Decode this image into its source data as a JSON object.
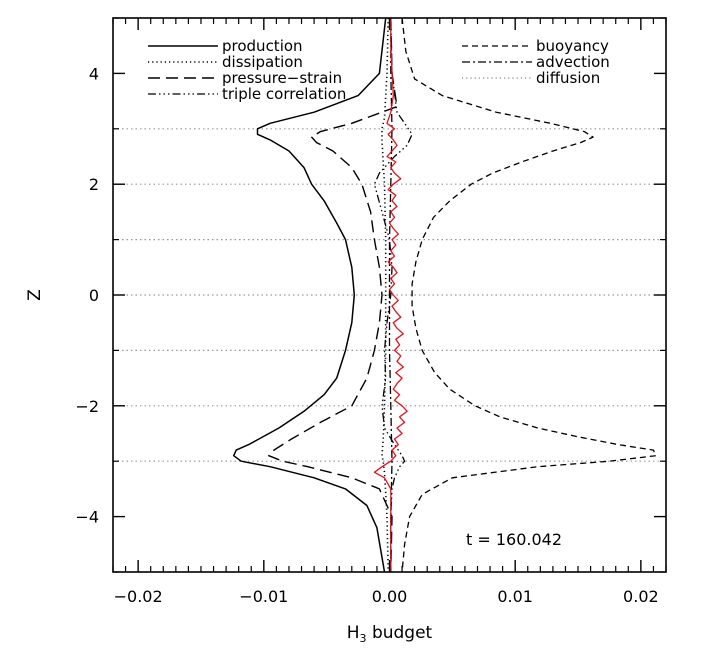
{
  "chart_data": {
    "type": "line",
    "xlabel": "H",
    "xlabel_sub": "3",
    "xlabel_rest": " budget",
    "ylabel": "Z",
    "xlim": [
      -0.022,
      0.022
    ],
    "ylim": [
      -5,
      5
    ],
    "x_ticks": [
      -0.02,
      -0.01,
      0.0,
      0.01,
      0.02
    ],
    "x_tick_labels": [
      "−0.02",
      "−0.01",
      "0.00",
      "0.01",
      "0.02"
    ],
    "y_ticks": [
      -4,
      -2,
      0,
      2,
      4
    ],
    "y_tick_labels": [
      "−4",
      "−2",
      "0",
      "2",
      "4"
    ],
    "grid_z": [
      -3,
      -2,
      -1,
      0,
      1,
      2,
      3
    ],
    "annotation": "t = 160.042",
    "legend_left": [
      "production",
      "dissipation",
      "pressure−strain",
      "triple correlation"
    ],
    "legend_right": [
      "buoyancy",
      "advection",
      "diffusion"
    ],
    "series": [
      {
        "name": "production",
        "style": "solid",
        "color": "#000000",
        "z": [
          5,
          4,
          3.6,
          3.3,
          3.1,
          3.0,
          2.9,
          2.8,
          2.6,
          2.3,
          2.0,
          1.7,
          1.3,
          1.0,
          0.5,
          0,
          -0.5,
          -1.0,
          -1.5,
          -1.8,
          -2.1,
          -2.4,
          -2.7,
          -2.8,
          -2.9,
          -3.0,
          -3.1,
          -3.3,
          -3.5,
          -3.8,
          -4.2,
          -5
        ],
        "x": [
          -0.0003,
          -0.0008,
          -0.0025,
          -0.006,
          -0.0095,
          -0.0105,
          -0.0105,
          -0.0095,
          -0.008,
          -0.0068,
          -0.0062,
          -0.0052,
          -0.0042,
          -0.0035,
          -0.003,
          -0.0028,
          -0.003,
          -0.0035,
          -0.0042,
          -0.0052,
          -0.0068,
          -0.0088,
          -0.0112,
          -0.0122,
          -0.0124,
          -0.0118,
          -0.0095,
          -0.006,
          -0.0035,
          -0.0018,
          -0.001,
          -0.0004
        ]
      },
      {
        "name": "dissipation",
        "style": "dotted",
        "color": "#000000",
        "z": [
          5,
          4,
          3.2,
          3.0,
          2.8,
          2.4,
          2.0,
          1.0,
          0,
          -1.0,
          -2.0,
          -2.6,
          -2.9,
          -3.0,
          -3.2,
          -4,
          -5
        ],
        "x": [
          -0.0001,
          -0.0002,
          -0.0004,
          -0.0006,
          -0.0006,
          -0.0005,
          -0.0004,
          -0.0003,
          -0.0003,
          -0.0003,
          -0.0004,
          -0.0005,
          -0.0006,
          -0.0005,
          -0.0004,
          -0.0002,
          -0.0001
        ]
      },
      {
        "name": "pressure−strain",
        "style": "longdash",
        "color": "#000000",
        "z": [
          5,
          4,
          3.4,
          3.1,
          2.95,
          2.85,
          2.75,
          2.6,
          2.3,
          2.0,
          1.5,
          1.0,
          0.5,
          0,
          -0.5,
          -1.0,
          -1.5,
          -2.0,
          -2.3,
          -2.6,
          -2.8,
          -2.9,
          -3.0,
          -3.1,
          -3.3,
          -3.5,
          -4,
          -5
        ],
        "x": [
          0.0001,
          0.0002,
          0.0006,
          -0.003,
          -0.0055,
          -0.0062,
          -0.0058,
          -0.0045,
          -0.003,
          -0.0022,
          -0.0015,
          -0.0012,
          -0.0008,
          -0.0006,
          -0.0008,
          -0.0012,
          -0.0018,
          -0.003,
          -0.0055,
          -0.0078,
          -0.0092,
          -0.0096,
          -0.0085,
          -0.0065,
          -0.003,
          -0.0008,
          0.0002,
          0.0001
        ]
      },
      {
        "name": "triple correlation",
        "style": "dashdotdot",
        "color": "#000000",
        "z": [
          5,
          4,
          3.3,
          3.1,
          2.9,
          2.7,
          2.5,
          2.2,
          2.0,
          1.5,
          1.0,
          0.5,
          0,
          -0.5,
          -1.0,
          -1.5,
          -2.0,
          -2.4,
          -2.7,
          -2.9,
          -3.0,
          -3.1,
          -3.3,
          -3.5,
          -4,
          -5
        ],
        "x": [
          0.0001,
          0.0002,
          0.0006,
          0.0012,
          0.0018,
          0.0014,
          0.0004,
          -0.0008,
          -0.0012,
          -0.0006,
          0.0,
          0.0002,
          0.0001,
          -0.0002,
          -0.0004,
          -0.0003,
          -0.0006,
          -0.0004,
          0.0004,
          0.001,
          0.0012,
          0.0008,
          0.0004,
          0.0002,
          0.0001,
          0.0001
        ]
      },
      {
        "name": "buoyancy",
        "style": "shortdash",
        "color": "#000000",
        "z": [
          5,
          4.4,
          3.9,
          3.6,
          3.3,
          3.1,
          2.95,
          2.85,
          2.75,
          2.6,
          2.4,
          2.2,
          2.0,
          1.7,
          1.4,
          1.0,
          0.6,
          0.2,
          0,
          -0.2,
          -0.6,
          -1.0,
          -1.4,
          -1.7,
          -2.0,
          -2.2,
          -2.4,
          -2.55,
          -2.7,
          -2.8,
          -2.9,
          -3.0,
          -3.1,
          -3.3,
          -3.6,
          -4.0,
          -4.5,
          -5
        ],
        "x": [
          0.001,
          0.0013,
          0.002,
          0.0042,
          0.0085,
          0.0128,
          0.0155,
          0.0162,
          0.0152,
          0.013,
          0.0105,
          0.0082,
          0.0065,
          0.0048,
          0.0035,
          0.0026,
          0.0021,
          0.0018,
          0.0018,
          0.0018,
          0.0021,
          0.0026,
          0.0036,
          0.0048,
          0.0068,
          0.0088,
          0.0118,
          0.0148,
          0.0182,
          0.021,
          0.0212,
          0.0175,
          0.0118,
          0.005,
          0.0026,
          0.0016,
          0.0012,
          0.001
        ]
      },
      {
        "name": "advection",
        "style": "dashdot",
        "color": "#000000",
        "z": [
          5,
          4,
          3.0,
          2.0,
          1.0,
          0,
          -1.0,
          -2.0,
          -3.0,
          -4,
          -5
        ],
        "x": [
          0.0001,
          0.0001,
          0.0002,
          0.0001,
          0.0,
          0.0,
          0.0,
          0.0001,
          0.0002,
          0.0001,
          0.0001
        ]
      },
      {
        "name": "diffusion",
        "style": "red-solid",
        "color": "#e0141e",
        "z": [
          5,
          4.5,
          4.0,
          3.6,
          3.3,
          3.1,
          3.0,
          2.9,
          2.8,
          2.7,
          2.6,
          2.5,
          2.4,
          2.3,
          2.2,
          2.1,
          2.0,
          1.9,
          1.8,
          1.7,
          1.6,
          1.5,
          1.4,
          1.3,
          1.2,
          1.1,
          1.0,
          0.9,
          0.8,
          0.7,
          0.6,
          0.5,
          0.4,
          0.3,
          0.2,
          0.1,
          0,
          -0.1,
          -0.2,
          -0.3,
          -0.4,
          -0.5,
          -0.6,
          -0.7,
          -0.8,
          -0.9,
          -1.0,
          -1.1,
          -1.2,
          -1.3,
          -1.4,
          -1.5,
          -1.6,
          -1.7,
          -1.8,
          -1.9,
          -2.0,
          -2.1,
          -2.2,
          -2.3,
          -2.4,
          -2.5,
          -2.6,
          -2.7,
          -2.8,
          -2.9,
          -3.0,
          -3.1,
          -3.2,
          -3.3,
          -3.5,
          -4.0,
          -4.5,
          -5
        ],
        "x": [
          0.0001,
          0.0001,
          0.0002,
          0.0003,
          0.0001,
          -0.0002,
          0.0004,
          -0.0001,
          0.0003,
          0.0006,
          0.0002,
          -0.0002,
          0.0005,
          0.0001,
          0.0004,
          0.0009,
          0.0003,
          -0.0001,
          0.0005,
          0.0002,
          0.0006,
          0.0001,
          0.0004,
          0.0,
          0.0003,
          0.0007,
          0.0002,
          0.0005,
          0.0001,
          0.0004,
          -0.0001,
          0.0003,
          0.0006,
          0.0001,
          0.0004,
          0.0,
          0.0003,
          0.0007,
          0.0002,
          0.0005,
          0.0009,
          0.0003,
          0.0006,
          0.0011,
          0.0005,
          0.0008,
          0.0004,
          0.0009,
          0.0006,
          0.0011,
          0.0005,
          0.001,
          0.0006,
          0.0003,
          0.0008,
          0.0004,
          0.001,
          0.0014,
          0.0008,
          0.0012,
          0.0006,
          0.001,
          0.0004,
          0.0007,
          0.0002,
          0.0005,
          0.0001,
          -0.0006,
          -0.0012,
          -0.0004,
          0.0001,
          0.0001,
          0.0001,
          0.0001
        ]
      }
    ]
  }
}
